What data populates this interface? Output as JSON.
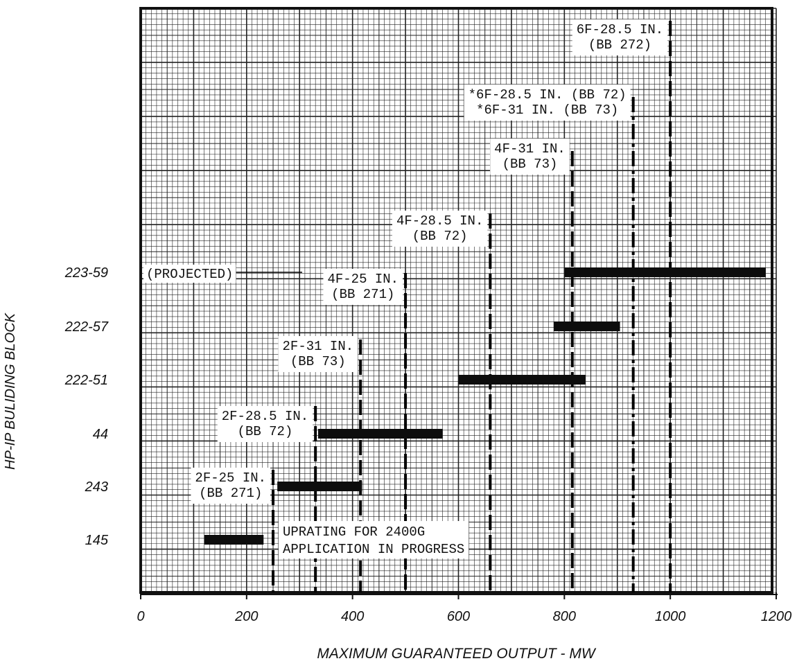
{
  "chart_data": {
    "type": "bar",
    "xlabel": "MAXIMUM GUARANTEED OUTPUT - MW",
    "ylabel": "HP-IP BULIDING BLOCK",
    "xlim": [
      0,
      1200
    ],
    "x_ticks": [
      "0",
      "200",
      "400",
      "600",
      "800",
      "1000",
      "1200"
    ],
    "grid": true,
    "categories": [
      "223-59",
      "222-57",
      "222-51",
      "44",
      "243",
      "145"
    ],
    "ranges": [
      {
        "block": "223-59",
        "start": 800,
        "end": 1180
      },
      {
        "block": "222-57",
        "start": 780,
        "end": 905
      },
      {
        "block": "222-51",
        "start": 600,
        "end": 840
      },
      {
        "block": "44",
        "start": 335,
        "end": 570
      },
      {
        "block": "243",
        "start": 258,
        "end": 418
      },
      {
        "block": "145",
        "start": 120,
        "end": 232
      }
    ],
    "limits": [
      {
        "x": 250,
        "lines": [
          "2F-25 IN.",
          "(BB 271)"
        ]
      },
      {
        "x": 330,
        "lines": [
          "2F-28.5 IN.",
          "(BB 72)"
        ]
      },
      {
        "x": 415,
        "lines": [
          "2F-31 IN.",
          "(BB 73)"
        ]
      },
      {
        "x": 500,
        "lines": [
          "4F-25 IN.",
          "(BB 271)"
        ]
      },
      {
        "x": 660,
        "lines": [
          "4F-28.5 IN.",
          "(BB 72)"
        ]
      },
      {
        "x": 815,
        "lines": [
          "4F-31 IN.",
          "(BB 73)"
        ]
      },
      {
        "x": 930,
        "lines": [
          "*6F-28.5 IN. (BB 72)",
          "*6F-31 IN. (BB 73)"
        ]
      },
      {
        "x": 1000,
        "lines": [
          "6F-28.5 IN.",
          "(BB 272)"
        ]
      }
    ],
    "annotations": {
      "projected": "(PROJECTED)",
      "uprating": [
        "UPRATING FOR 2400G",
        "APPLICATION IN PROGRESS"
      ]
    }
  }
}
